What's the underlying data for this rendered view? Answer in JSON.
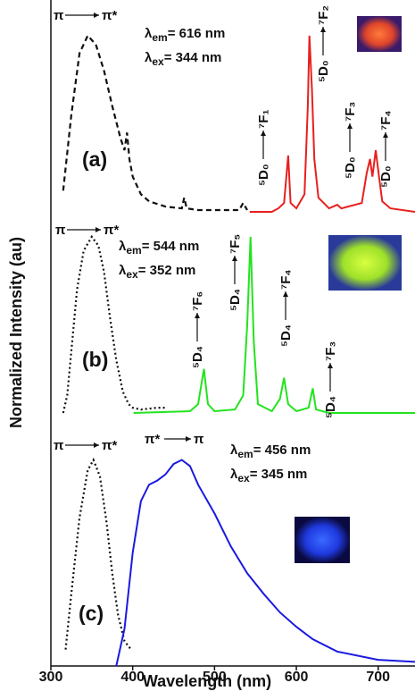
{
  "chart_data": {
    "type": "line",
    "xlabel": "Wavelength (nm)",
    "ylabel": "Normalized Intensity (au)",
    "xlim": [
      300,
      745
    ],
    "xticks": [
      300,
      400,
      500,
      600,
      700
    ],
    "panels": [
      {
        "label": "(a)",
        "label_color": "#e8201e",
        "ylim": [
          0,
          1.05
        ],
        "excitation_label": {
          "from": "π",
          "to": "π*"
        },
        "emission_text": [
          "λ",
          "em",
          "= 616 nm"
        ],
        "excitation_text": [
          "λ",
          "ex",
          "= 344 nm"
        ],
        "transitions": [
          {
            "from": "⁵D₀",
            "to": "⁷F₁"
          },
          {
            "from": "⁵D₀",
            "to": "⁷F₂"
          },
          {
            "from": "⁵D₀",
            "to": "⁷F₃"
          },
          {
            "from": "⁵D₀",
            "to": "⁷F₄"
          }
        ],
        "series": [
          {
            "name": "excitation",
            "color": "#111111",
            "style": "dashed",
            "x": [
              315,
              325,
              335,
              345,
              355,
              365,
              375,
              385,
              390,
              393,
              396,
              400,
              410,
              420,
              440,
              460,
              463,
              466,
              480,
              500,
              530,
              535,
              540
            ],
            "values": [
              0.12,
              0.55,
              0.9,
              1.0,
              0.95,
              0.8,
              0.6,
              0.42,
              0.35,
              0.45,
              0.3,
              0.2,
              0.1,
              0.06,
              0.03,
              0.02,
              0.08,
              0.02,
              0.01,
              0.01,
              0.01,
              0.05,
              0.01
            ]
          },
          {
            "name": "emission",
            "color": "#e8201e",
            "style": "solid",
            "x": [
              543,
              570,
              578,
              585,
              590,
              593,
              600,
              610,
              614,
              616,
              619,
              622,
              627,
              640,
              650,
              655,
              680,
              686,
              690,
              693,
              697,
              701,
              705,
              715,
              745
            ],
            "values": [
              0,
              0,
              0.02,
              0.05,
              0.32,
              0.05,
              0.02,
              0.1,
              0.6,
              1.0,
              0.7,
              0.3,
              0.08,
              0.02,
              0.04,
              0.02,
              0.05,
              0.22,
              0.3,
              0.2,
              0.35,
              0.2,
              0.06,
              0.02,
              0
            ]
          }
        ]
      },
      {
        "label": "(b)",
        "label_color": "#3ee83a",
        "ylim": [
          0,
          1.05
        ],
        "excitation_label": {
          "from": "π",
          "to": "π*"
        },
        "emission_text": [
          "λ",
          "em",
          "= 544 nm"
        ],
        "excitation_text": [
          "λ",
          "ex",
          "= 352 nm"
        ],
        "transitions": [
          {
            "from": "⁵D₄",
            "to": "⁷F₆"
          },
          {
            "from": "⁵D₄",
            "to": "⁷F₅"
          },
          {
            "from": "⁵D₄",
            "to": "⁷F₄"
          },
          {
            "from": "⁵D₄",
            "to": "⁷F₃"
          }
        ],
        "series": [
          {
            "name": "excitation",
            "color": "#111111",
            "style": "dotted",
            "x": [
              315,
              320,
              325,
              332,
              340,
              350,
              358,
              365,
              372,
              380,
              388,
              395,
              400,
              410,
              430,
              440
            ],
            "values": [
              0,
              0.1,
              0.35,
              0.7,
              0.92,
              1.0,
              0.95,
              0.8,
              0.55,
              0.3,
              0.12,
              0.05,
              0.03,
              0.02,
              0.03,
              0.03
            ]
          },
          {
            "name": "emission",
            "color": "#22e41e",
            "style": "solid",
            "x": [
              401,
              470,
              480,
              487,
              492,
              500,
              525,
              535,
              540,
              544,
              548,
              553,
              570,
              580,
              585,
              590,
              600,
              615,
              620,
              624,
              640,
              745
            ],
            "values": [
              0,
              0.01,
              0.05,
              0.25,
              0.05,
              0.01,
              0.02,
              0.1,
              0.5,
              1.0,
              0.4,
              0.05,
              0.01,
              0.08,
              0.2,
              0.05,
              0.01,
              0.03,
              0.14,
              0.02,
              0,
              0
            ]
          }
        ]
      },
      {
        "label": "(c)",
        "label_color": "#1f78c8",
        "ylim": [
          0,
          1.05
        ],
        "excitation_label": {
          "from": "π",
          "to": "π*"
        },
        "emission_label": {
          "from": "π*",
          "to": "π"
        },
        "emission_text": [
          "λ",
          "em",
          "= 456 nm"
        ],
        "excitation_text": [
          "λ",
          "ex",
          "= 345 nm"
        ],
        "series": [
          {
            "name": "excitation",
            "color": "#111111",
            "style": "dotted",
            "x": [
              318,
              325,
              335,
              345,
              352,
              360,
              368,
              375,
              382,
              390,
              398
            ],
            "values": [
              0.08,
              0.35,
              0.72,
              0.95,
              1.0,
              0.92,
              0.7,
              0.45,
              0.25,
              0.12,
              0.08
            ]
          },
          {
            "name": "emission",
            "color": "#1a1ae0",
            "style": "solid",
            "x": [
              380,
              390,
              400,
              410,
              420,
              430,
              440,
              450,
              460,
              470,
              480,
              500,
              520,
              540,
              560,
              580,
              600,
              620,
              650,
              700,
              745
            ],
            "values": [
              0,
              0.18,
              0.55,
              0.8,
              0.88,
              0.9,
              0.93,
              0.98,
              1.0,
              0.97,
              0.88,
              0.74,
              0.58,
              0.45,
              0.35,
              0.26,
              0.19,
              0.13,
              0.07,
              0.03,
              0.02
            ]
          }
        ]
      }
    ]
  }
}
